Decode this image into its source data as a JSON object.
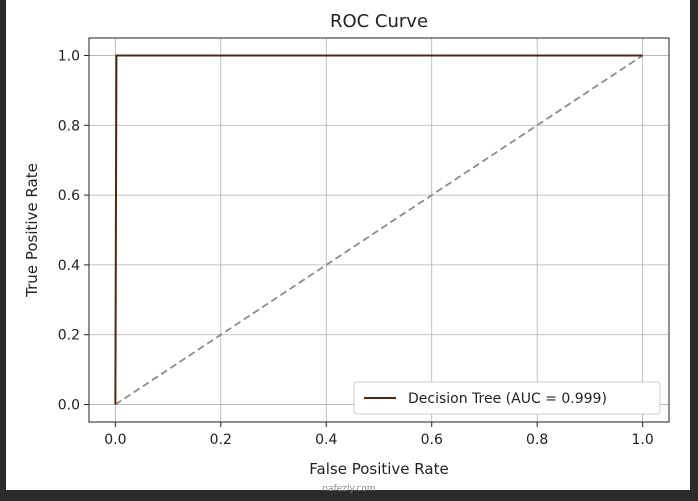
{
  "chart_data": {
    "type": "line",
    "title": "ROC Curve",
    "xlabel": "False Positive Rate",
    "ylabel": "True Positive Rate",
    "xlim": [
      -0.05,
      1.05
    ],
    "ylim": [
      -0.05,
      1.05
    ],
    "xticks": [
      "0.0",
      "0.2",
      "0.4",
      "0.6",
      "0.8",
      "1.0"
    ],
    "yticks": [
      "0.0",
      "0.2",
      "0.4",
      "0.6",
      "0.8",
      "1.0"
    ],
    "grid": true,
    "legend_position": "lower-right",
    "series": [
      {
        "name": "Decision Tree (AUC = 0.999)",
        "color": "#4a2a14",
        "style": "solid",
        "x": [
          0.0,
          0.002,
          1.0
        ],
        "y": [
          0.0,
          1.0,
          1.0
        ]
      },
      {
        "color": "#8c8c8c",
        "style": "dashed",
        "x": [
          0.0,
          1.0
        ],
        "y": [
          0.0,
          1.0
        ]
      }
    ]
  },
  "watermark": "nafezly.com"
}
